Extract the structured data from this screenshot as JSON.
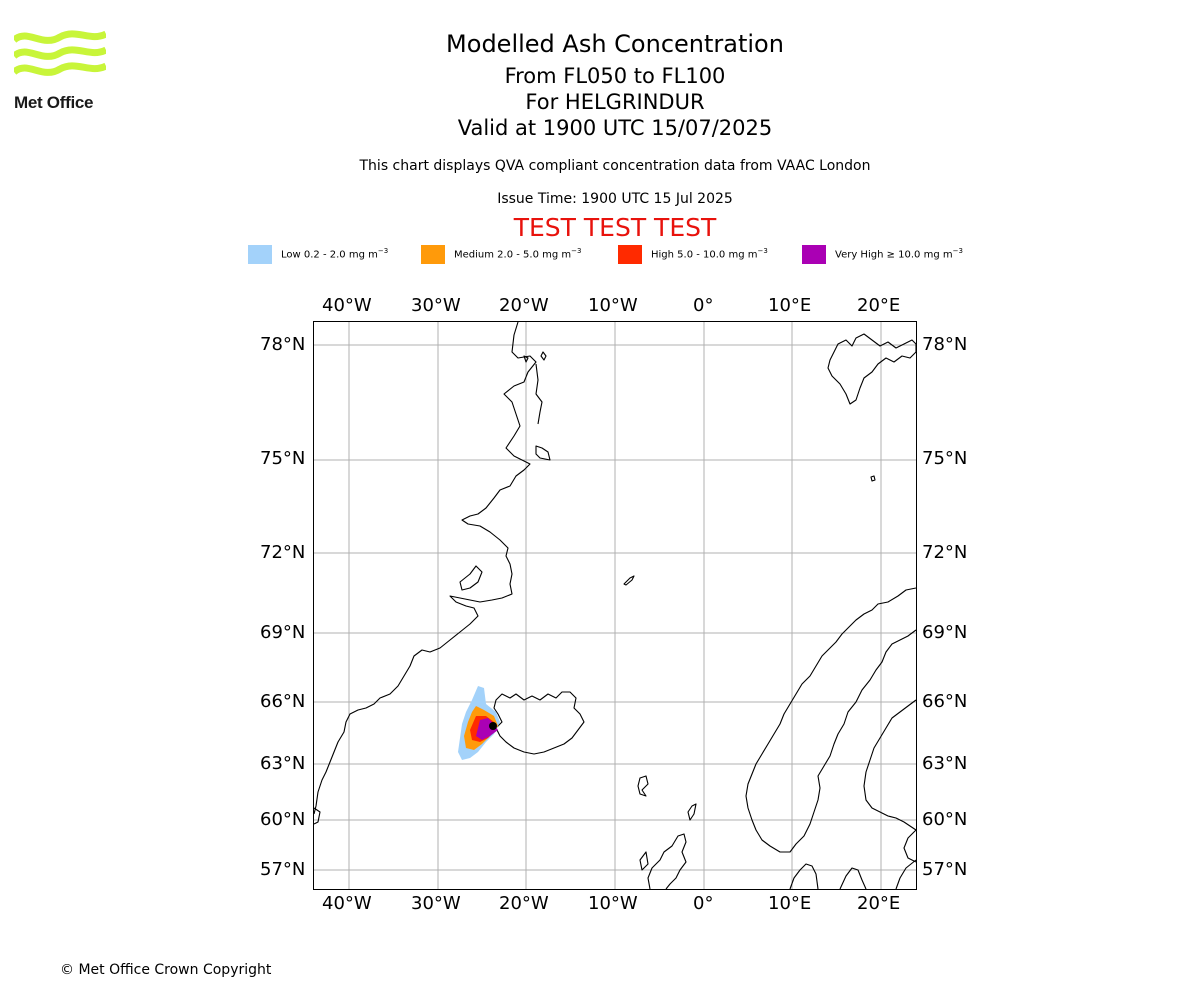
{
  "header": {
    "title": "Modelled Ash Concentration",
    "levels": "From FL050 to FL100",
    "volcano": "For HELGRINDUR",
    "valid": "Valid at 1900 UTC 15/07/2025",
    "note": "This chart displays QVA compliant concentration data from VAAC London",
    "issue": "Issue Time: 1900 UTC 15 Jul 2025",
    "test_banner": "TEST TEST TEST"
  },
  "logo": {
    "text": "Met Office",
    "color": "#c8f53a"
  },
  "legend": [
    {
      "label": "Low 0.2 - 2.0 mg m",
      "exp": "−3",
      "color": "#a3d2fa"
    },
    {
      "label": "Medium 2.0 - 5.0 mg m",
      "exp": "−3",
      "color": "#ff9a0a"
    },
    {
      "label": "High 5.0 - 10.0 mg m",
      "exp": "−3",
      "color": "#ff2a00"
    },
    {
      "label": "Very High  ≥  10.0 mg m",
      "exp": "−3",
      "color": "#aa00b4"
    }
  ],
  "map": {
    "lon_ticks": [
      "40°W",
      "30°W",
      "20°W",
      "10°W",
      "0°",
      "10°E",
      "20°E"
    ],
    "lat_ticks": [
      "78°N",
      "75°N",
      "72°N",
      "69°N",
      "66°N",
      "63°N",
      "60°N",
      "57°N"
    ],
    "grid": true,
    "volcano_marker": "black dot"
  },
  "footer": {
    "copyright": "© Met Office Crown Copyright"
  }
}
